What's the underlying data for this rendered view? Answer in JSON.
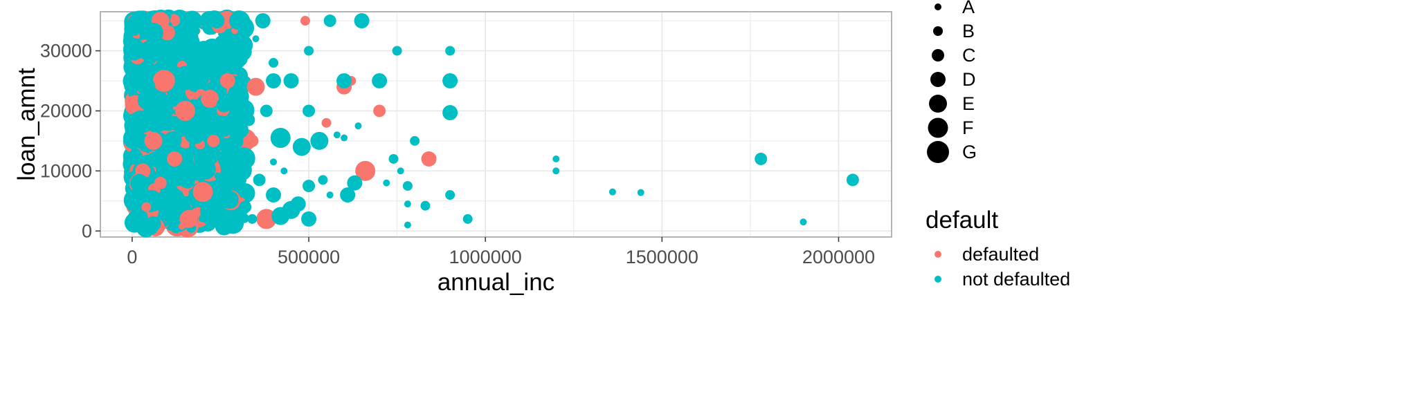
{
  "chart_data": {
    "type": "scatter",
    "title": "",
    "xlabel": "annual_inc",
    "ylabel": "loan_amnt",
    "xlim": [
      -90000,
      2150000
    ],
    "ylim": [
      -1000,
      36500
    ],
    "x_ticks": [
      0,
      500000,
      1000000,
      1500000,
      2000000
    ],
    "x_tick_labels": [
      "0",
      "500000",
      "1000000",
      "1500000",
      "2000000"
    ],
    "y_ticks": [
      0,
      10000,
      20000,
      30000
    ],
    "y_tick_labels": [
      "0",
      "10000",
      "20000",
      "30000"
    ],
    "grid": true,
    "legend_placement": "right",
    "size_legend": {
      "entries": [
        "A",
        "B",
        "C",
        "D",
        "E",
        "F",
        "G"
      ]
    },
    "color_legend": {
      "title": "default",
      "entries": [
        {
          "label": "defaulted",
          "color": "#F8766D"
        },
        {
          "label": "not defaulted",
          "color": "#00BFC4"
        }
      ]
    },
    "series": [
      {
        "name": "defaulted",
        "color": "#F8766D",
        "points": [
          {
            "x": 490000,
            "y": 35000,
            "grade": "B"
          },
          {
            "x": 600000,
            "y": 24000,
            "grade": "D"
          },
          {
            "x": 620000,
            "y": 25000,
            "grade": "B"
          },
          {
            "x": 700000,
            "y": 20000,
            "grade": "C"
          },
          {
            "x": 660000,
            "y": 10000,
            "grade": "F"
          },
          {
            "x": 840000,
            "y": 12000,
            "grade": "D"
          },
          {
            "x": 550000,
            "y": 18000,
            "grade": "B"
          },
          {
            "x": 380000,
            "y": 2000,
            "grade": "F"
          },
          {
            "x": 310000,
            "y": 5000,
            "grade": "A"
          },
          {
            "x": 350000,
            "y": 24000,
            "grade": "E"
          },
          {
            "x": 270000,
            "y": 25000,
            "grade": "D"
          },
          {
            "x": 220000,
            "y": 22000,
            "grade": "E"
          },
          {
            "x": 150000,
            "y": 20000,
            "grade": "F"
          },
          {
            "x": 90000,
            "y": 25000,
            "grade": "G"
          },
          {
            "x": 60000,
            "y": 15000,
            "grade": "E"
          },
          {
            "x": 120000,
            "y": 12000,
            "grade": "D"
          },
          {
            "x": 200000,
            "y": 6500,
            "grade": "F"
          },
          {
            "x": 80000,
            "y": 8000,
            "grade": "C"
          },
          {
            "x": 40000,
            "y": 4000,
            "grade": "B"
          },
          {
            "x": 100000,
            "y": 33000,
            "grade": "D"
          },
          {
            "x": 80000,
            "y": 35000,
            "grade": "E"
          },
          {
            "x": 30000,
            "y": 10000,
            "grade": "D"
          },
          {
            "x": 160000,
            "y": 2000,
            "grade": "E"
          },
          {
            "x": 230000,
            "y": 15000,
            "grade": "C"
          },
          {
            "x": 340000,
            "y": 15000,
            "grade": "C"
          }
        ]
      },
      {
        "name": "not defaulted",
        "color": "#00BFC4",
        "points": [
          {
            "x": 650000,
            "y": 35000,
            "grade": "D"
          },
          {
            "x": 560000,
            "y": 35000,
            "grade": "C"
          },
          {
            "x": 750000,
            "y": 30000,
            "grade": "B"
          },
          {
            "x": 900000,
            "y": 30000,
            "grade": "B"
          },
          {
            "x": 500000,
            "y": 30000,
            "grade": "B"
          },
          {
            "x": 600000,
            "y": 25000,
            "grade": "D"
          },
          {
            "x": 700000,
            "y": 25000,
            "grade": "D"
          },
          {
            "x": 900000,
            "y": 25000,
            "grade": "D"
          },
          {
            "x": 900000,
            "y": 19700,
            "grade": "D"
          },
          {
            "x": 500000,
            "y": 20000,
            "grade": "C"
          },
          {
            "x": 640000,
            "y": 17500,
            "grade": "A"
          },
          {
            "x": 580000,
            "y": 16000,
            "grade": "A"
          },
          {
            "x": 600000,
            "y": 15500,
            "grade": "A"
          },
          {
            "x": 800000,
            "y": 15000,
            "grade": "B"
          },
          {
            "x": 530000,
            "y": 15000,
            "grade": "E"
          },
          {
            "x": 480000,
            "y": 14000,
            "grade": "E"
          },
          {
            "x": 420000,
            "y": 15500,
            "grade": "F"
          },
          {
            "x": 740000,
            "y": 12000,
            "grade": "B"
          },
          {
            "x": 760000,
            "y": 10000,
            "grade": "A"
          },
          {
            "x": 630000,
            "y": 8000,
            "grade": "D"
          },
          {
            "x": 720000,
            "y": 8000,
            "grade": "A"
          },
          {
            "x": 780000,
            "y": 7500,
            "grade": "B"
          },
          {
            "x": 900000,
            "y": 6000,
            "grade": "B"
          },
          {
            "x": 610000,
            "y": 6000,
            "grade": "D"
          },
          {
            "x": 560000,
            "y": 6000,
            "grade": "A"
          },
          {
            "x": 500000,
            "y": 7500,
            "grade": "C"
          },
          {
            "x": 540000,
            "y": 8500,
            "grade": "B"
          },
          {
            "x": 470000,
            "y": 4500,
            "grade": "D"
          },
          {
            "x": 450000,
            "y": 3500,
            "grade": "E"
          },
          {
            "x": 500000,
            "y": 2000,
            "grade": "D"
          },
          {
            "x": 420000,
            "y": 2500,
            "grade": "E"
          },
          {
            "x": 830000,
            "y": 4200,
            "grade": "B"
          },
          {
            "x": 780000,
            "y": 4500,
            "grade": "A"
          },
          {
            "x": 950000,
            "y": 2000,
            "grade": "B"
          },
          {
            "x": 780000,
            "y": 1000,
            "grade": "A"
          },
          {
            "x": 1200000,
            "y": 12000,
            "grade": "A"
          },
          {
            "x": 1200000,
            "y": 10000,
            "grade": "A"
          },
          {
            "x": 1360000,
            "y": 6500,
            "grade": "A"
          },
          {
            "x": 1440000,
            "y": 6400,
            "grade": "A"
          },
          {
            "x": 1780000,
            "y": 12000,
            "grade": "C"
          },
          {
            "x": 1900000,
            "y": 1500,
            "grade": "A"
          },
          {
            "x": 2040000,
            "y": 8500,
            "grade": "C"
          },
          {
            "x": 450000,
            "y": 25000,
            "grade": "D"
          },
          {
            "x": 400000,
            "y": 25000,
            "grade": "D"
          },
          {
            "x": 400000,
            "y": 28000,
            "grade": "B"
          },
          {
            "x": 370000,
            "y": 35000,
            "grade": "D"
          },
          {
            "x": 300000,
            "y": 35000,
            "grade": "E"
          },
          {
            "x": 240000,
            "y": 35000,
            "grade": "D"
          },
          {
            "x": 350000,
            "y": 32000,
            "grade": "A"
          },
          {
            "x": 300000,
            "y": 30000,
            "grade": "C"
          },
          {
            "x": 280000,
            "y": 28000,
            "grade": "B"
          },
          {
            "x": 380000,
            "y": 20000,
            "grade": "C"
          },
          {
            "x": 400000,
            "y": 11500,
            "grade": "A"
          },
          {
            "x": 430000,
            "y": 10000,
            "grade": "A"
          },
          {
            "x": 360000,
            "y": 8500,
            "grade": "C"
          },
          {
            "x": 400000,
            "y": 6000,
            "grade": "D"
          },
          {
            "x": 320000,
            "y": 4000,
            "grade": "C"
          },
          {
            "x": 340000,
            "y": 2000,
            "grade": "B"
          },
          {
            "x": 250000,
            "y": 18000,
            "grade": "D"
          },
          {
            "x": 200000,
            "y": 12000,
            "grade": "E"
          },
          {
            "x": 150000,
            "y": 26000,
            "grade": "E"
          },
          {
            "x": 60000,
            "y": 33000,
            "grade": "F"
          },
          {
            "x": 40000,
            "y": 24000,
            "grade": "E"
          },
          {
            "x": 30000,
            "y": 18000,
            "grade": "F"
          },
          {
            "x": 20000,
            "y": 8000,
            "grade": "E"
          },
          {
            "x": 15000,
            "y": 2000,
            "grade": "F"
          },
          {
            "x": 60000,
            "y": 1200,
            "grade": "D"
          },
          {
            "x": 100000,
            "y": 5000,
            "grade": "F"
          },
          {
            "x": 130000,
            "y": 9000,
            "grade": "E"
          },
          {
            "x": 180000,
            "y": 16000,
            "grade": "E"
          },
          {
            "x": 210000,
            "y": 28000,
            "grade": "D"
          },
          {
            "x": 250000,
            "y": 5000,
            "grade": "E"
          },
          {
            "x": 280000,
            "y": 9500,
            "grade": "C"
          },
          {
            "x": 260000,
            "y": 21000,
            "grade": "D"
          },
          {
            "x": 330000,
            "y": 18500,
            "grade": "C"
          },
          {
            "x": 170000,
            "y": 35000,
            "grade": "F"
          },
          {
            "x": 110000,
            "y": 30000,
            "grade": "E"
          }
        ]
      }
    ],
    "dense_regions": [
      {
        "x_range": [
          5000,
          320000
        ],
        "y_range": [
          500,
          35000
        ],
        "colors": [
          "#00BFC4",
          "#F8766D"
        ]
      }
    ]
  }
}
